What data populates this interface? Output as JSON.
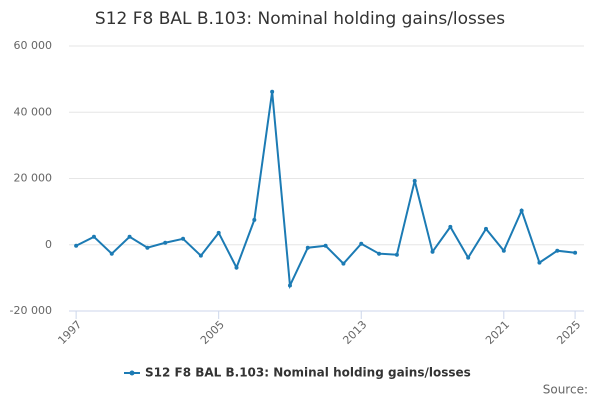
{
  "chart_data": {
    "type": "line",
    "title": "S12 F8 BAL B.103: Nominal holding gains/losses",
    "x": [
      1997,
      1998,
      1999,
      2000,
      2001,
      2002,
      2003,
      2004,
      2005,
      2006,
      2007,
      2008,
      2009,
      2010,
      2011,
      2012,
      2013,
      2014,
      2015,
      2016,
      2017,
      2018,
      2019,
      2020,
      2021,
      2022,
      2023,
      2024,
      2025
    ],
    "series": [
      {
        "name": "S12 F8 BAL B.103: Nominal holding gains/losses",
        "color": "#1c7bb4",
        "values": [
          -300,
          2400,
          -2700,
          2400,
          -900,
          600,
          1800,
          -3300,
          3600,
          -6900,
          7500,
          46200,
          -12300,
          -900,
          -300,
          -5700,
          300,
          -2700,
          -3000,
          19300,
          -2100,
          5400,
          -3900,
          4800,
          -1800,
          10300,
          -5400,
          -1800,
          -2400
        ]
      }
    ],
    "xlim": [
      1996.6,
      2025.5
    ],
    "xticks": [
      1997,
      2005,
      2013,
      2021,
      2025
    ],
    "ylim": [
      -20000,
      60000
    ],
    "yticks": [
      {
        "value": -20000,
        "label": "-20 000"
      },
      0,
      {
        "value": 20000,
        "label": "20 000"
      },
      {
        "value": 40000,
        "label": "40 000"
      },
      {
        "value": 60000,
        "label": "60 000"
      }
    ],
    "grid": true,
    "legend": "bottom",
    "source": "Source:"
  }
}
